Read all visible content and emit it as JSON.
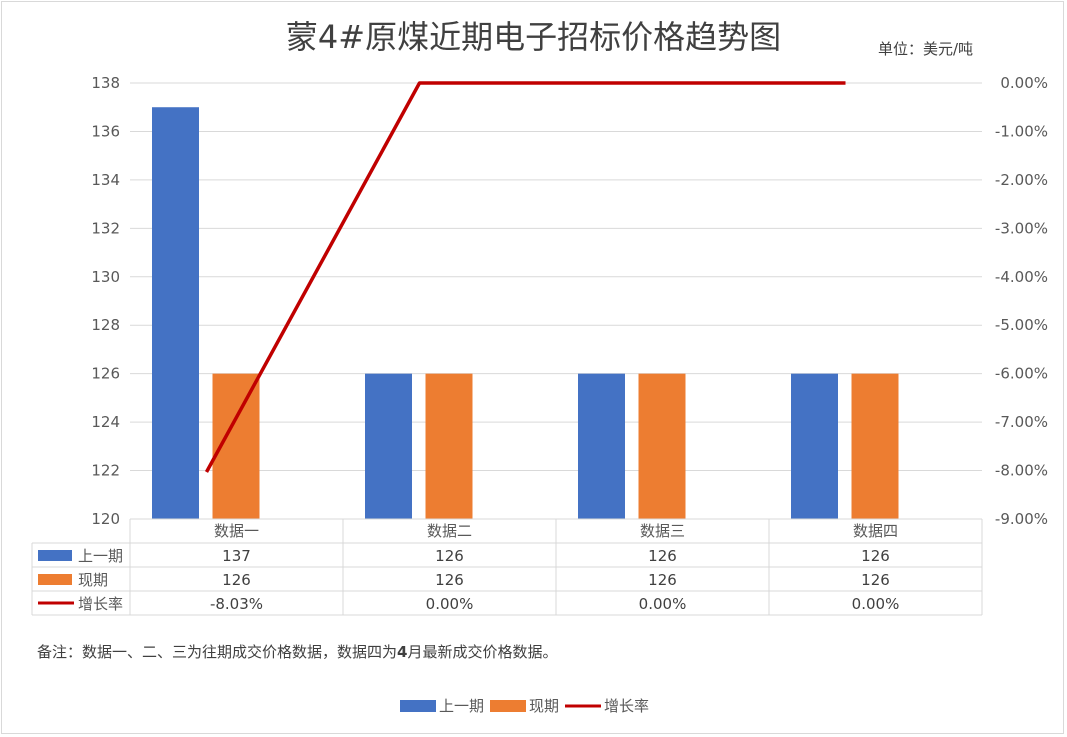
{
  "chart_data": {
    "type": "bar",
    "title": "蒙4#原煤近期电子招标价格趋势图",
    "unit_label": "单位：美元/吨",
    "categories": [
      "数据一",
      "数据二",
      "数据三",
      "数据四"
    ],
    "series": [
      {
        "name": "上一期",
        "type": "bar",
        "axis": "left",
        "color": "#4472C4",
        "values": [
          137,
          126,
          126,
          126
        ],
        "labels": [
          "137",
          "126",
          "126",
          "126"
        ]
      },
      {
        "name": "现期",
        "type": "bar",
        "axis": "left",
        "color": "#ED7D31",
        "values": [
          126,
          126,
          126,
          126
        ],
        "labels": [
          "126",
          "126",
          "126",
          "126"
        ]
      },
      {
        "name": "增长率",
        "type": "line",
        "axis": "right",
        "color": "#C00000",
        "values": [
          -8.03,
          0,
          0,
          0
        ],
        "labels": [
          "-8.03%",
          "0.00%",
          "0.00%",
          "0.00%"
        ]
      }
    ],
    "y_left": {
      "min": 120,
      "max": 138,
      "step": 2,
      "ticks": [
        "120",
        "122",
        "124",
        "126",
        "128",
        "130",
        "132",
        "134",
        "136",
        "138"
      ]
    },
    "y_right": {
      "min": -9,
      "max": 0,
      "step": 1,
      "ticks": [
        "-9.00%",
        "-8.00%",
        "-7.00%",
        "-6.00%",
        "-5.00%",
        "-4.00%",
        "-3.00%",
        "-2.00%",
        "-1.00%",
        "0.00%"
      ]
    },
    "grid": true,
    "legend": "bottom",
    "data_table": true
  },
  "note": {
    "prefix": "备注：数据一、二、三为往期成交价格数据，数据四为",
    "bold": "4",
    "suffix": "月最新成交价格数据。"
  }
}
